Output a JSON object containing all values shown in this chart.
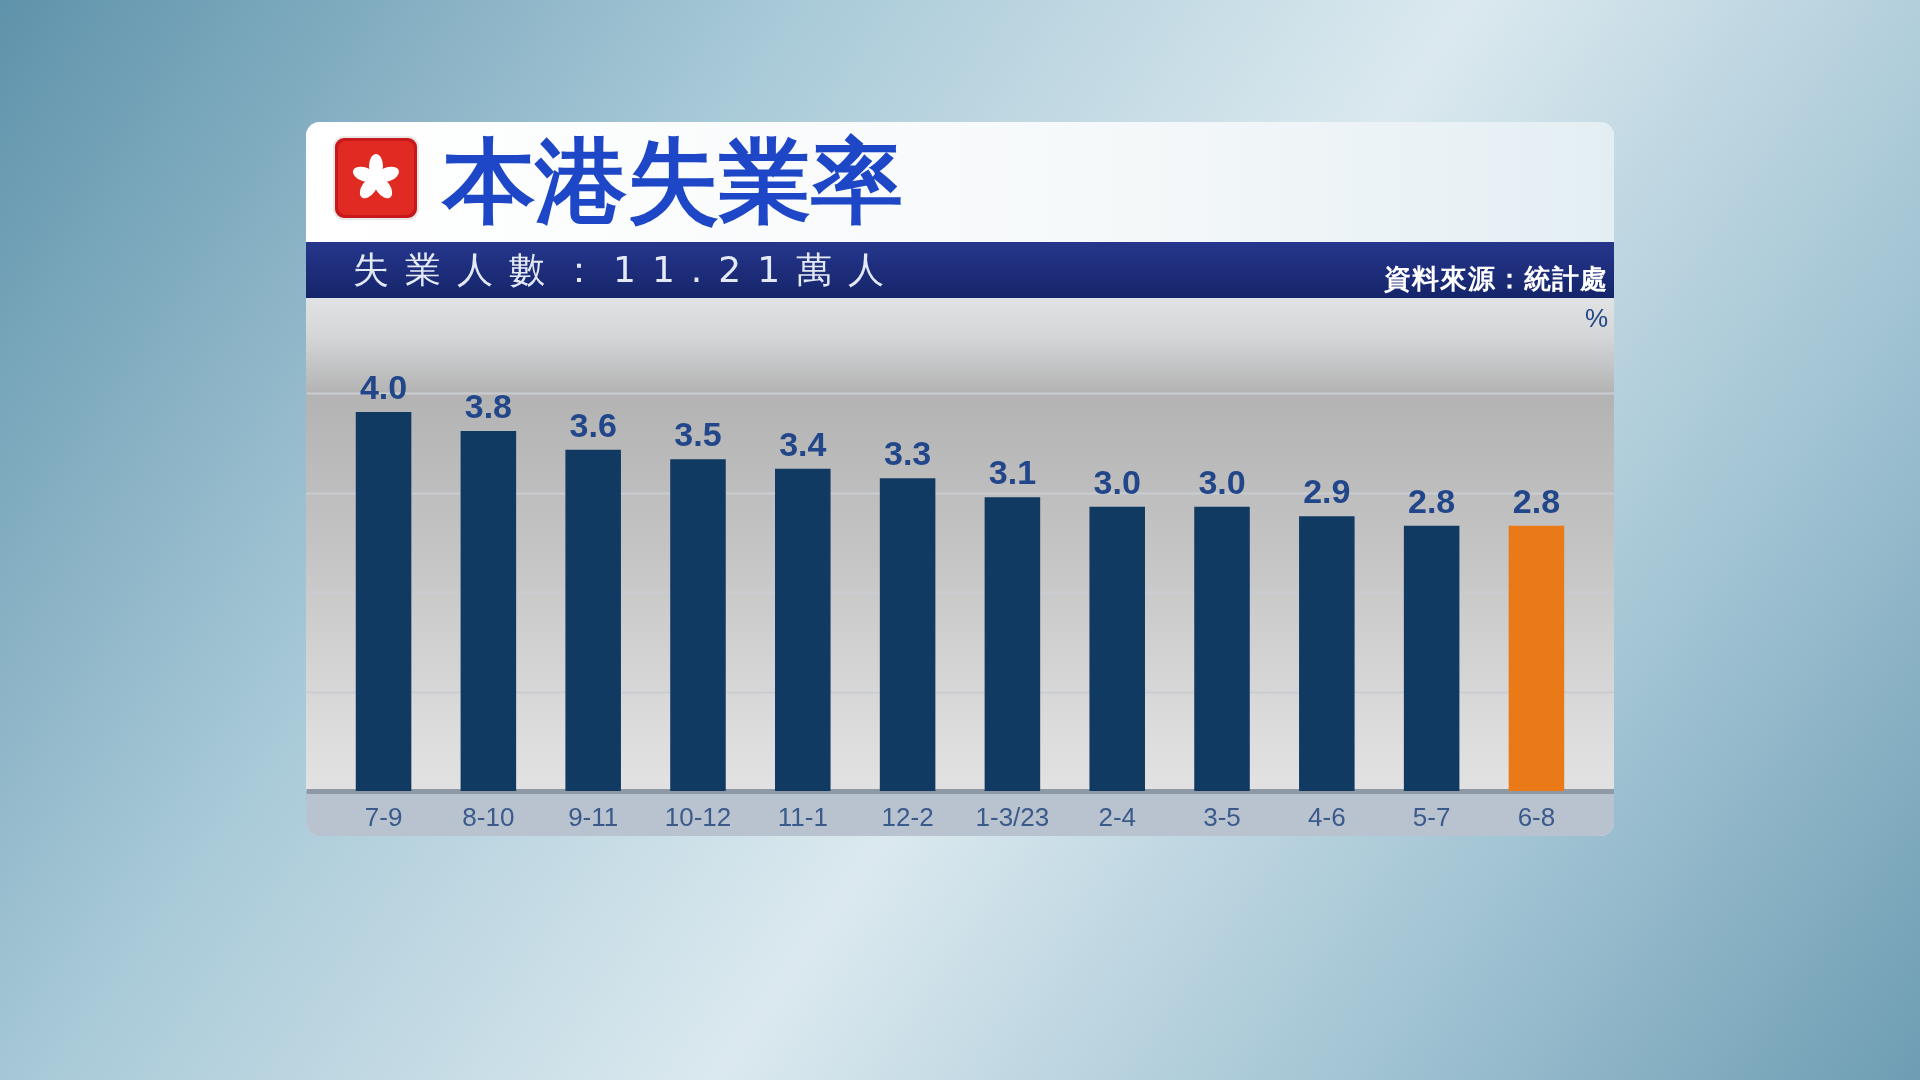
{
  "chart_data": {
    "type": "bar",
    "title": "本港失業率",
    "subtitle": "失業人數：11.21萬人",
    "ylabel": "%",
    "annotations": [
      "資料來源：統計處"
    ],
    "categories": [
      "7-9",
      "8-10",
      "9-11",
      "10-12",
      "11-1",
      "12-2",
      "1-3/23",
      "2-4",
      "3-5",
      "4-6",
      "5-7",
      "6-8"
    ],
    "values": [
      4.0,
      3.8,
      3.6,
      3.5,
      3.4,
      3.3,
      3.1,
      3.0,
      3.0,
      2.9,
      2.8,
      2.8
    ],
    "colors": [
      "#113a63",
      "#113a63",
      "#113a63",
      "#113a63",
      "#113a63",
      "#113a63",
      "#113a63",
      "#113a63",
      "#113a63",
      "#113a63",
      "#113a63",
      "#ea7a17"
    ],
    "value_labels": [
      "4.0",
      "3.8",
      "3.6",
      "3.5",
      "3.4",
      "3.3",
      "3.1",
      "3.0",
      "3.0",
      "2.9",
      "2.8",
      "2.8"
    ],
    "ylim": [
      0,
      4.2
    ],
    "yticks": [
      {
        "value": 1.05,
        "label": null
      },
      {
        "value": 2.1,
        "label": null
      },
      {
        "value": 3.15,
        "label": null
      },
      {
        "value": 4.2,
        "label": null
      }
    ],
    "grid": "y",
    "tick_labels": "x"
  }
}
